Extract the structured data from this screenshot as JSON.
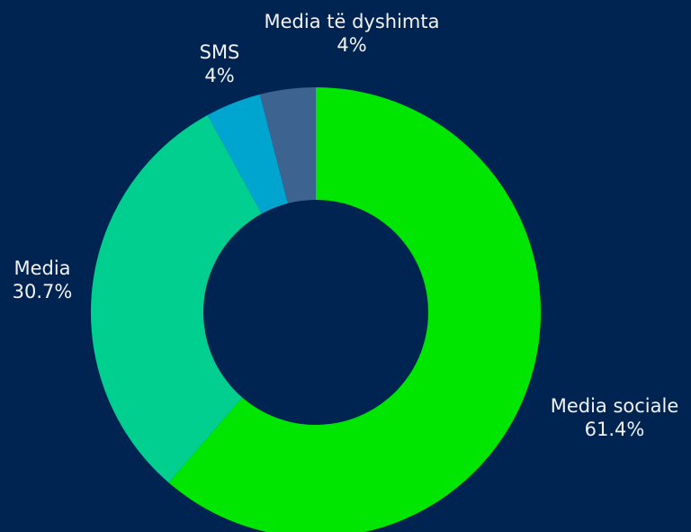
{
  "chart_data": {
    "type": "donut",
    "categories": [
      "Media sociale",
      "Media",
      "SMS",
      "Media të dyshimta"
    ],
    "values": [
      61.4,
      30.7,
      4,
      4
    ],
    "value_labels": [
      "61.4%",
      "30.7%",
      "4%",
      "4%"
    ],
    "colors": [
      "#00e600",
      "#00cf8f",
      "#00a5cf",
      "#3d6491"
    ]
  }
}
